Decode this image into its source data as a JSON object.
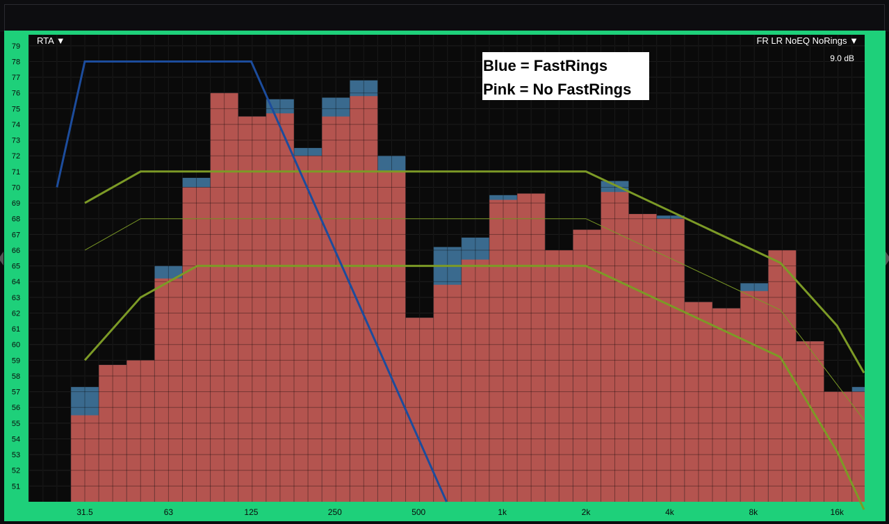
{
  "header": {
    "rta_menu": "RTA ▼",
    "preset_menu": "FR LR NoEQ NoRings ▼",
    "range_readout": "9.0 dB"
  },
  "legend": {
    "line1": "Blue = FastRings",
    "line2": "Pink = No FastRings"
  },
  "colors": {
    "frame": "#1ed07a",
    "plot_bg": "#0a0a0a",
    "pink_bar": "#b4544f",
    "blue_bar": "#3a6a8e",
    "blue_line": "#1c4c9c",
    "target_curve": "#7c9a26"
  },
  "chart_data": {
    "type": "bar",
    "ylim": [
      50,
      79.7
    ],
    "y_ticks": [
      "51",
      "52",
      "53",
      "54",
      "55",
      "56",
      "57",
      "58",
      "59",
      "60",
      "61",
      "62",
      "63",
      "64",
      "65",
      "66",
      "67",
      "68",
      "69",
      "70",
      "71",
      "72",
      "73",
      "74",
      "75",
      "76",
      "77",
      "78",
      "79"
    ],
    "x_ticks": [
      "31.5",
      "63",
      "125",
      "250",
      "500",
      "1k",
      "2k",
      "4k",
      "8k",
      "16k"
    ],
    "categories": [
      "31.5",
      "40",
      "50",
      "63",
      "80",
      "100",
      "125",
      "160",
      "200",
      "250",
      "315",
      "400",
      "500",
      "630",
      "800",
      "1k",
      "1.25k",
      "1.6k",
      "2k",
      "2.5k",
      "3.15k",
      "4k",
      "5k",
      "6.3k",
      "8k",
      "10k",
      "12.5k",
      "16k",
      "20k"
    ],
    "series": [
      {
        "name": "No FastRings",
        "values": [
          55.5,
          58.7,
          59.0,
          64.2,
          70.0,
          76.0,
          74.5,
          74.7,
          72.0,
          74.5,
          75.8,
          71.0,
          61.7,
          63.8,
          65.4,
          69.2,
          69.6,
          66.0,
          67.3,
          69.7,
          68.3,
          68.0,
          62.7,
          62.3,
          63.4,
          66.0,
          60.2,
          57.0,
          57.0
        ]
      },
      {
        "name": "FastRings",
        "values": [
          57.3,
          58.7,
          59.0,
          65.0,
          70.6,
          76.0,
          74.5,
          75.6,
          72.5,
          75.7,
          76.8,
          72.0,
          61.7,
          66.2,
          66.8,
          69.5,
          69.6,
          66.0,
          67.3,
          70.4,
          68.3,
          68.2,
          62.7,
          62.3,
          63.9,
          66.0,
          60.2,
          57.0,
          57.3
        ]
      }
    ],
    "blue_line": {
      "x": [
        25,
        31.5,
        125,
        630
      ],
      "y": [
        70,
        78,
        78,
        50
      ]
    },
    "target_curves": [
      {
        "x": [
          31.5,
          50,
          2000,
          10000,
          16000,
          20000
        ],
        "y": [
          69,
          71,
          71,
          65.2,
          61.2,
          58.2
        ]
      },
      {
        "x": [
          31.5,
          50,
          2000,
          10000,
          20000
        ],
        "y": [
          66,
          68,
          68,
          62.2,
          55.2
        ]
      },
      {
        "x": [
          31.5,
          50,
          80,
          2000,
          10000,
          16000,
          20000
        ],
        "y": [
          59,
          63,
          65,
          65,
          59.2,
          53.2,
          49.5
        ]
      }
    ]
  }
}
